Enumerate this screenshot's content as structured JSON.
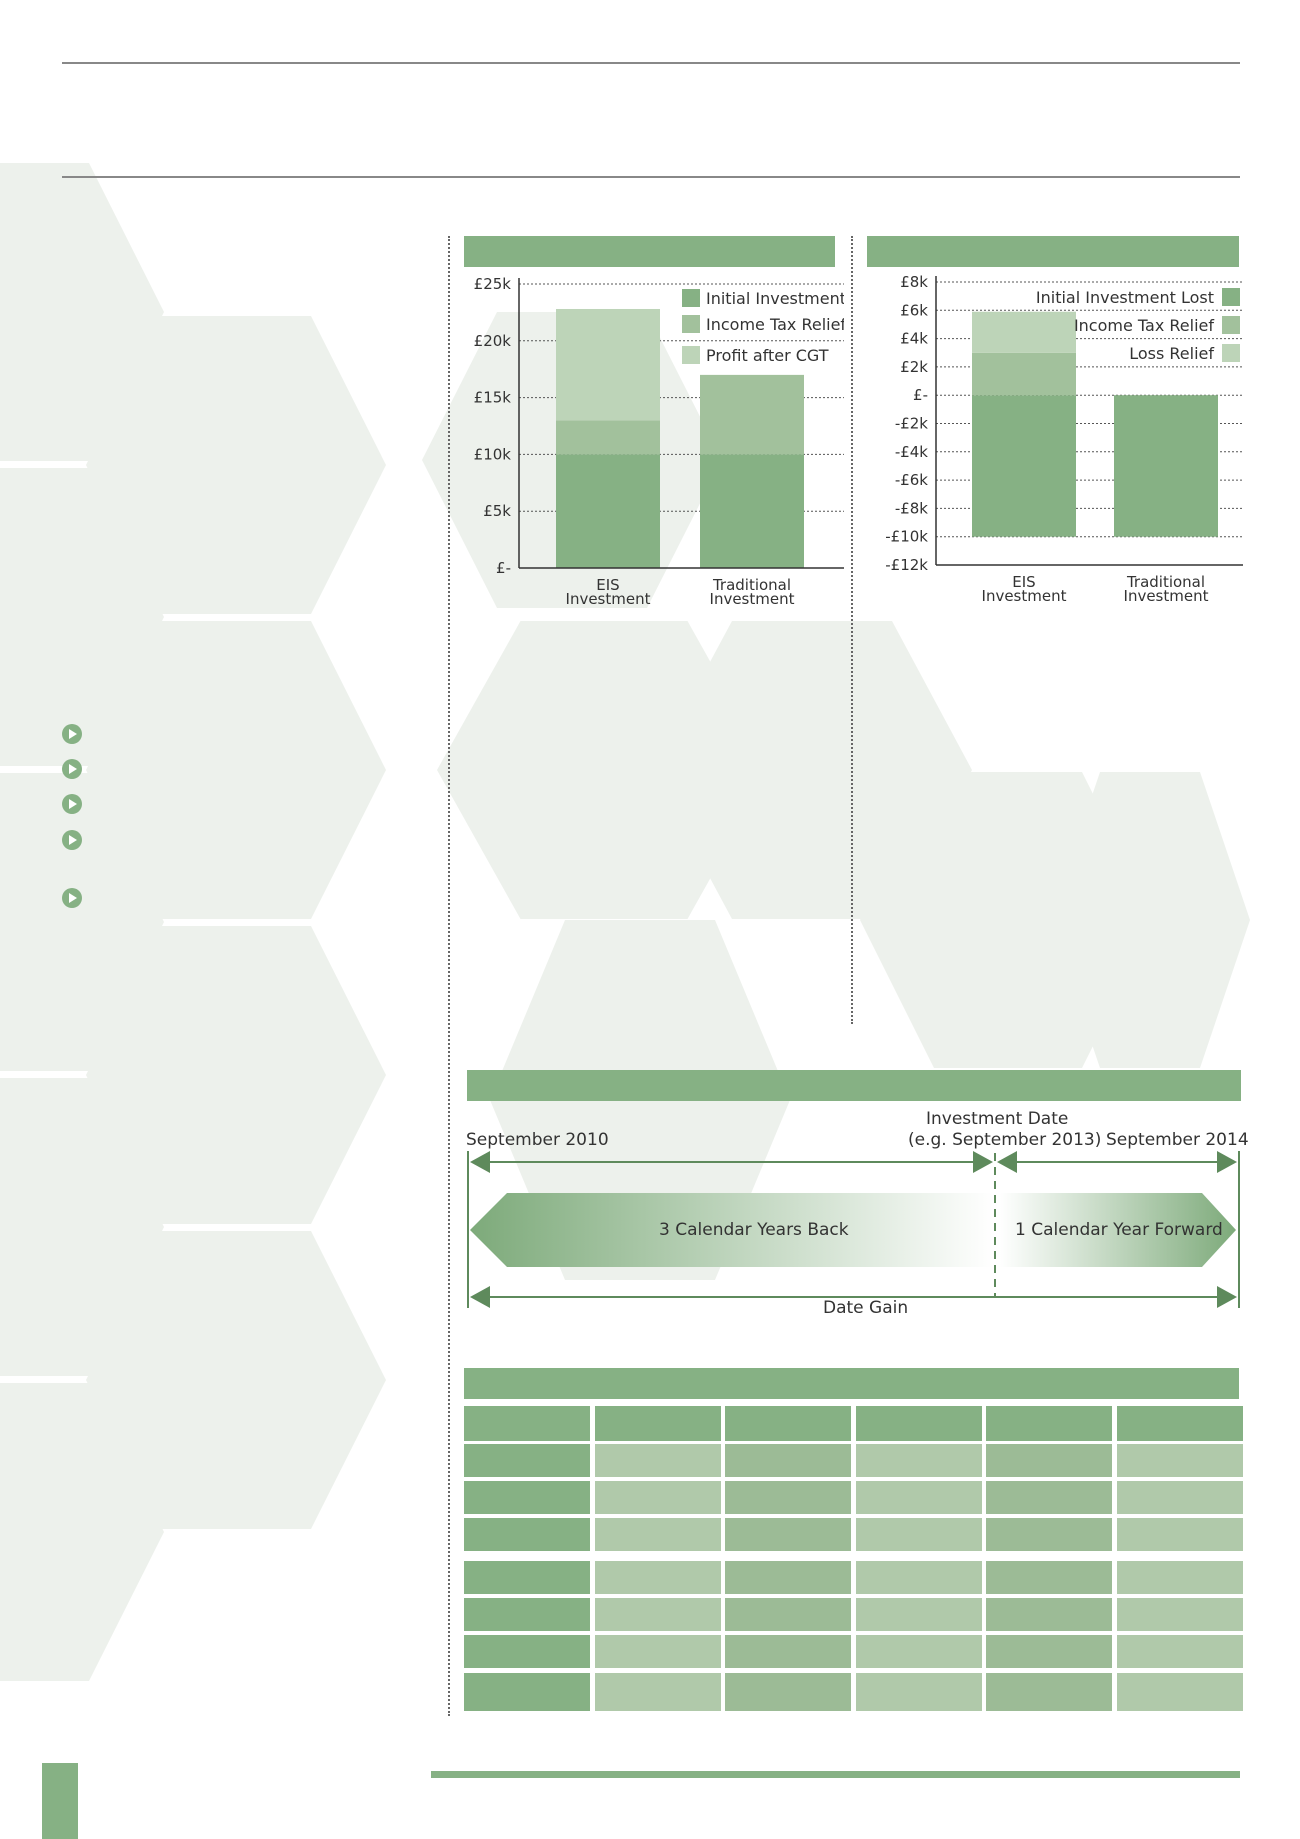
{
  "colors": {
    "green_dark": "#86b184",
    "green_mid": "#a2c19c",
    "green_light": "#bdd4b8",
    "hex_bg": "#edf1ec",
    "timeline_arrow": "#5e8a5c"
  },
  "chart_data": [
    {
      "type": "bar",
      "stacked": true,
      "categories": [
        "EIS\nInvestment",
        "Traditional\nInvestment"
      ],
      "category_lines": [
        [
          "EIS",
          "Investment"
        ],
        [
          "Traditional",
          "Investment"
        ]
      ],
      "series": [
        {
          "name": "Initial Investment",
          "color": "#86b184",
          "values": [
            10000,
            10000
          ]
        },
        {
          "name": "Income Tax Relief",
          "color": "#a2c19c",
          "values": [
            3000,
            7000
          ]
        },
        {
          "name": "Profit after CGT",
          "color": "#bdd4b8",
          "values": [
            9800,
            0
          ]
        }
      ],
      "ylim": [
        0,
        25000
      ],
      "yticks": [
        0,
        5000,
        10000,
        15000,
        20000,
        25000
      ],
      "ytick_labels": [
        "£-",
        "£5k",
        "£10k",
        "£15k",
        "£20k",
        "£25k"
      ],
      "grid": true,
      "legend": "top-right"
    },
    {
      "type": "bar",
      "stacked": true,
      "categories": [
        "EIS\nInvestment",
        "Traditional\nInvestment"
      ],
      "category_lines": [
        [
          "EIS",
          "Investment"
        ],
        [
          "Traditional",
          "Investment"
        ]
      ],
      "series": [
        {
          "name": "Initial Investment Lost",
          "color": "#86b184",
          "values": [
            -10000,
            -10000
          ]
        },
        {
          "name": "Income Tax Relief",
          "color": "#a2c19c",
          "values": [
            3000,
            0
          ]
        },
        {
          "name": "Loss Relief",
          "color": "#bdd4b8",
          "values": [
            2900,
            0
          ]
        }
      ],
      "ylim": [
        -12000,
        8000
      ],
      "yticks": [
        -12000,
        -10000,
        -8000,
        -6000,
        -4000,
        -2000,
        0,
        2000,
        4000,
        6000,
        8000
      ],
      "ytick_labels": [
        "-£12k",
        "-£10k",
        "-£8k",
        "-£6k",
        "-£4k",
        "-£2k",
        "£-",
        "£2k",
        "£4k",
        "£6k",
        "£8k"
      ],
      "grid": true,
      "legend": "top-right"
    }
  ],
  "timeline": {
    "start_label": "September 2010",
    "investment_date_line1": "Investment Date",
    "investment_date_line2": "(e.g. September 2013)",
    "end_label": "September 2014",
    "back_label": "3 Calendar Years Back",
    "forward_label": "1 Calendar Year Forward",
    "gain_label": "Date Gain"
  },
  "table": {
    "rows": 8,
    "cols": 6
  }
}
